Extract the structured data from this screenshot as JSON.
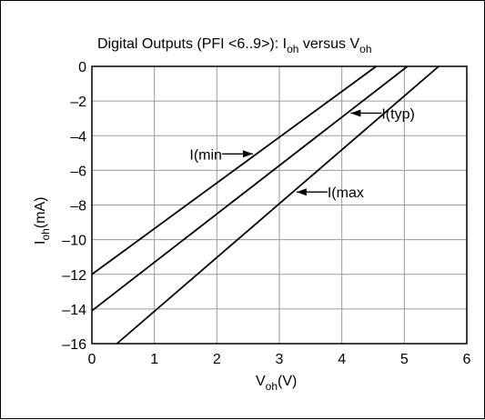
{
  "chart_data": {
    "type": "line",
    "title": {
      "prefix": "Digital Outputs (PFI <6..9>): I",
      "sub1": "oh",
      "middle": " versus V",
      "sub2": "oh"
    },
    "xlabel": {
      "main": "V",
      "sub": "oh",
      "suffix": "(V)"
    },
    "ylabel": {
      "main": "I",
      "sub": "oh",
      "suffix": "(mA)"
    },
    "xlim": [
      0,
      6
    ],
    "ylim": [
      -16,
      0
    ],
    "x_ticks": [
      "0",
      "1",
      "2",
      "3",
      "4",
      "5",
      "6"
    ],
    "y_ticks": [
      "0",
      "–2",
      "–4",
      "–6",
      "–8",
      "–10",
      "–12",
      "–14",
      "–16"
    ],
    "grid": true,
    "series": [
      {
        "name": "I(min",
        "x": [
          0,
          4.55
        ],
        "y": [
          -12,
          0
        ]
      },
      {
        "name": "I(typ)",
        "x": [
          0,
          5.05
        ],
        "y": [
          -14.1,
          0
        ]
      },
      {
        "name": "I(max",
        "x": [
          0.4,
          5.55
        ],
        "y": [
          -16,
          0
        ]
      }
    ],
    "annotations": [
      {
        "text": "I(min",
        "series": "I(min",
        "at_y": -5.05,
        "side": "left"
      },
      {
        "text": "I(typ)",
        "series": "I(typ)",
        "at_y": -2.7,
        "side": "right"
      },
      {
        "text": "I(max",
        "series": "I(max",
        "at_y": -7.25,
        "side": "right"
      }
    ]
  }
}
